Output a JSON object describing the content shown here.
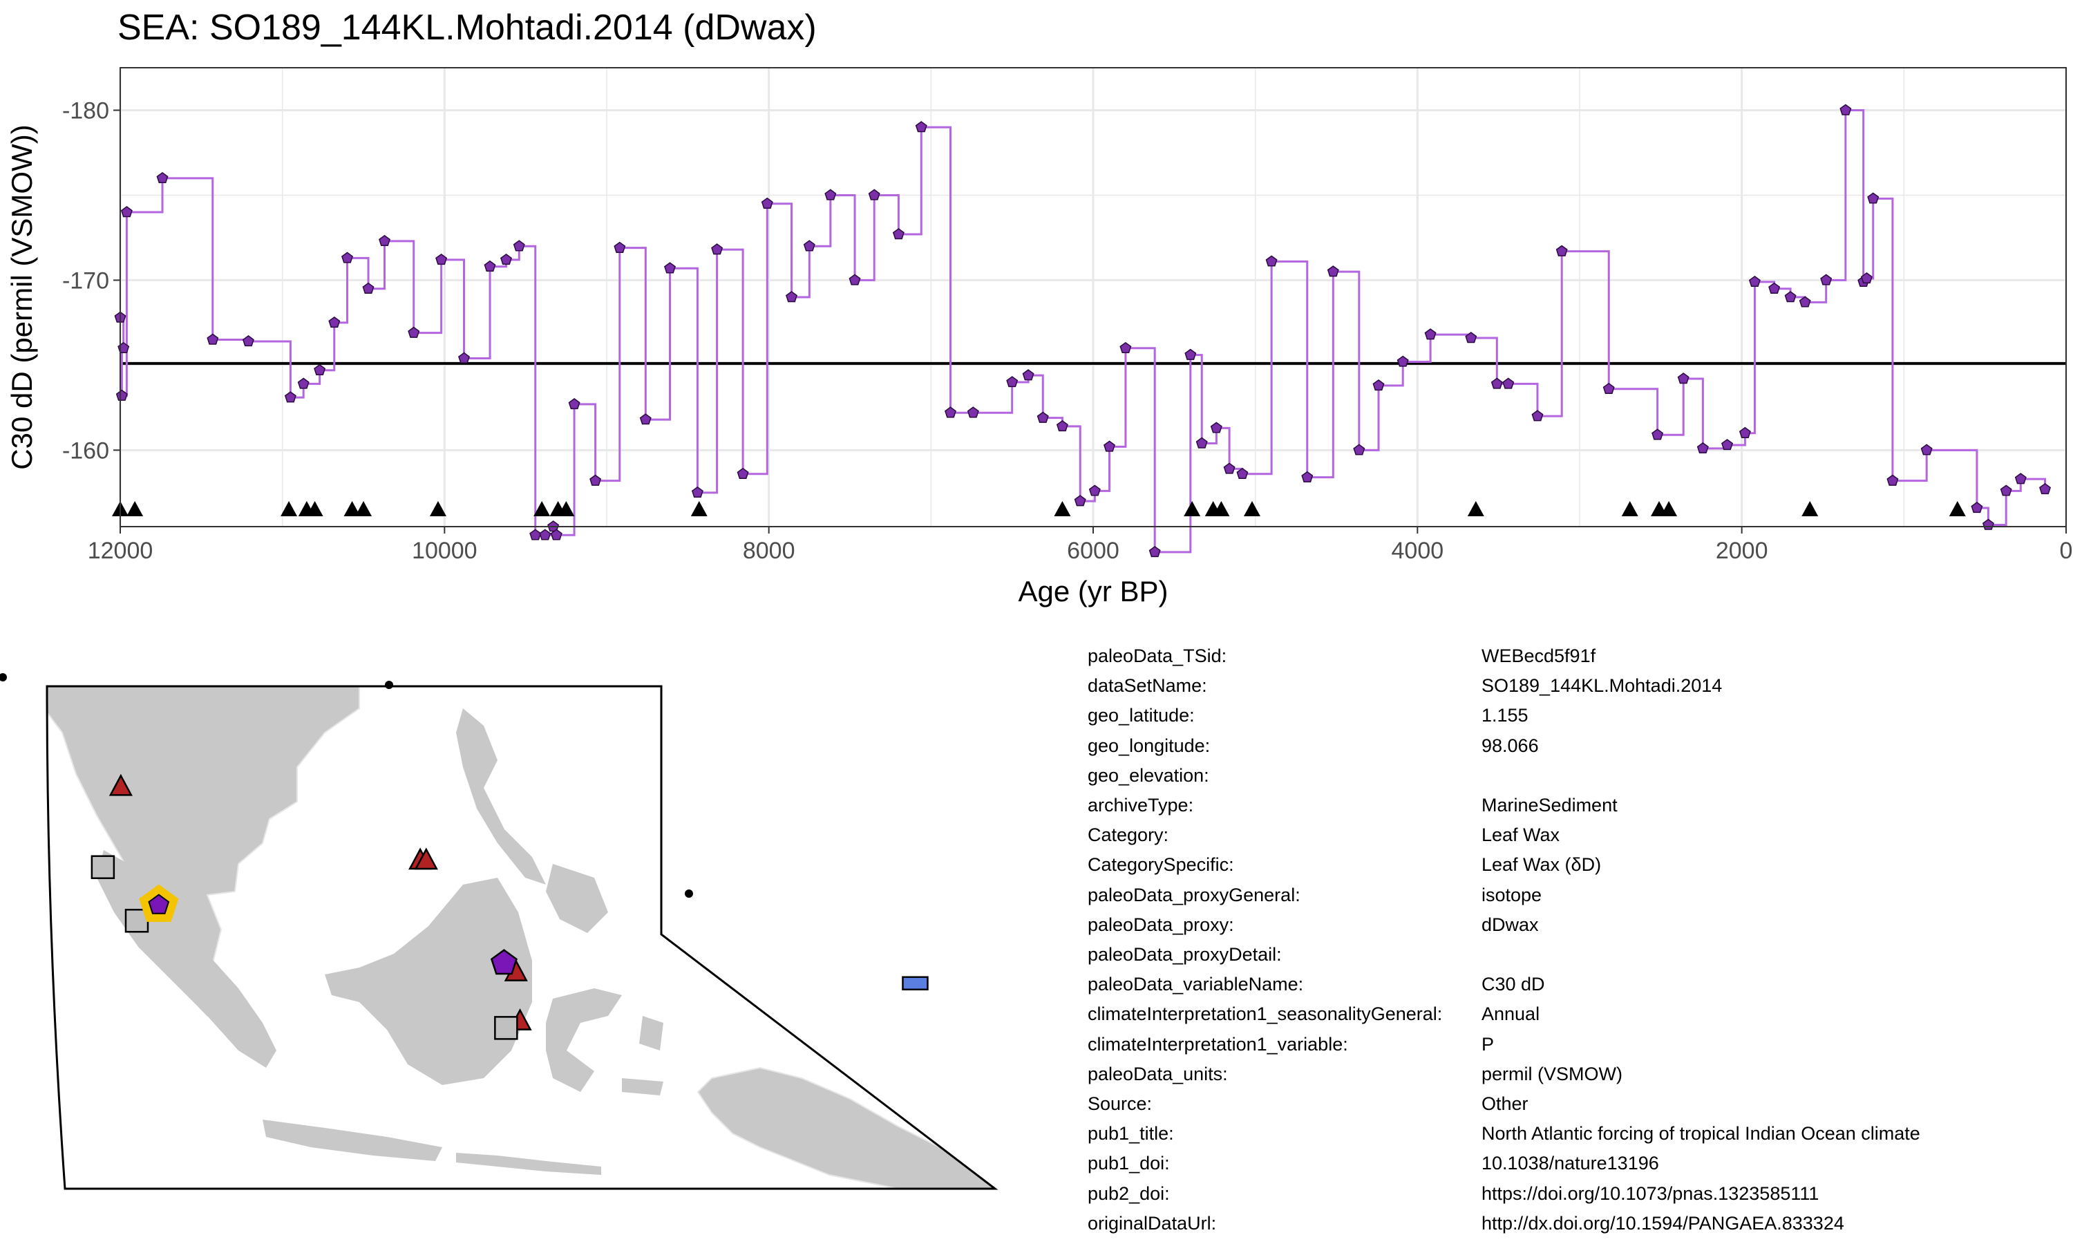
{
  "title": "SEA: SO189_144KL.Mohtadi.2014 (dDwax)",
  "colors": {
    "series_line": "#b366e0",
    "series_point": "#7b2fa8",
    "mean_line": "#000000",
    "land": "#c8c8c8",
    "highlight": "#f5c400",
    "triangle_red": "#b22222",
    "square_grey": "#c0c0c0",
    "rect_blue": "#5b7fe0",
    "pentagon_purple": "#7a16b8"
  },
  "chart_data": {
    "type": "line",
    "title": "SEA: SO189_144KL.Mohtadi.2014 (dDwax)",
    "xlabel": "Age (yr BP)",
    "ylabel": "C30 dD (permil (VSMOW))",
    "x_reversed": true,
    "y_reversed": true,
    "xlim": [
      12000,
      0
    ],
    "ylim": [
      -182.5,
      -155.5
    ],
    "xticks": [
      12000,
      10000,
      8000,
      6000,
      4000,
      2000,
      0
    ],
    "xtick_labels": [
      "12000",
      "10000",
      "8000",
      "6000",
      "4000",
      "2000",
      "0"
    ],
    "yticks": [
      -180,
      -170,
      -160
    ],
    "ytick_labels": [
      "-180",
      "-170",
      "-160"
    ],
    "grid": true,
    "step": true,
    "mean": -165.1,
    "series": [
      {
        "x": [
          12000,
          11980,
          11990,
          11960,
          11740,
          11430,
          11210,
          10950,
          10870,
          10770,
          10680,
          10600,
          10470,
          10370,
          10190,
          10020,
          9880,
          9720,
          9620,
          9540,
          9440,
          9380,
          9330,
          9310,
          9200,
          9070,
          8920,
          8760,
          8610,
          8440,
          8320,
          8160,
          8010,
          7860,
          7750,
          7620,
          7470,
          7350,
          7200,
          7060,
          6880,
          6740,
          6500,
          6400,
          6310,
          6190,
          6080,
          5990,
          5900,
          5800,
          5620,
          5400,
          5330,
          5240,
          5160,
          5080,
          4900,
          4680,
          4520,
          4360,
          4240,
          4090,
          3920,
          3670,
          3510,
          3440,
          3260,
          3110,
          2820,
          2520,
          2360,
          2240,
          2090,
          1980,
          1920,
          1800,
          1700,
          1610,
          1480,
          1360,
          1250,
          1230,
          1190,
          1070,
          860,
          550,
          480,
          370,
          280,
          130
        ],
        "y": [
          -167.8,
          -166.0,
          -163.2,
          -174.0,
          -176.0,
          -166.5,
          -166.4,
          -163.1,
          -163.9,
          -164.7,
          -167.5,
          -171.3,
          -169.5,
          -172.3,
          -166.9,
          -171.2,
          -165.4,
          -170.8,
          -171.2,
          -172.0,
          -155.0,
          -155.0,
          -155.5,
          -155.0,
          -162.7,
          -158.2,
          -171.9,
          -161.8,
          -170.7,
          -157.5,
          -171.8,
          -158.6,
          -174.5,
          -169.0,
          -172.0,
          -175.0,
          -170.0,
          -175.0,
          -172.7,
          -179.0,
          -162.2,
          -162.2,
          -164.0,
          -164.4,
          -161.9,
          -161.4,
          -157.0,
          -157.6,
          -160.2,
          -166.0,
          -154.0,
          -165.6,
          -160.4,
          -161.3,
          -158.9,
          -158.6,
          -171.1,
          -158.4,
          -170.5,
          -160.0,
          -163.8,
          -165.2,
          -166.8,
          -166.6,
          -163.9,
          -163.9,
          -162.0,
          -171.7,
          -163.6,
          -160.9,
          -164.2,
          -160.1,
          -160.3,
          -161.0,
          -169.9,
          -169.5,
          -169.0,
          -168.7,
          -170.0,
          -180.0,
          -169.9,
          -170.1,
          -174.8,
          -158.2,
          -160.0,
          -156.6,
          -155.6,
          -157.6,
          -158.3,
          -157.7
        ]
      }
    ],
    "age_control_points": [
      12000,
      11910,
      10960,
      10850,
      10800,
      10570,
      10500,
      10040,
      9400,
      9300,
      9250,
      8430,
      6190,
      5390,
      5260,
      5210,
      5020,
      3640,
      2690,
      2510,
      2450,
      1580,
      670
    ]
  },
  "map": {
    "sites": [
      {
        "shape": "triangle",
        "color": "#b22222",
        "lon": 96.2,
        "lat": 6.5
      },
      {
        "shape": "triangle",
        "color": "#b22222",
        "lon": 111.2,
        "lat": 3.2
      },
      {
        "shape": "triangle",
        "color": "#b22222",
        "lon": 111.5,
        "lat": 3.2
      },
      {
        "shape": "triangle",
        "color": "#b22222",
        "lon": 116.0,
        "lat": -1.8
      },
      {
        "shape": "triangle",
        "color": "#b22222",
        "lon": 116.2,
        "lat": -4.0
      },
      {
        "shape": "square",
        "color": "#c0c0c0",
        "lon": 95.3,
        "lat": 2.9
      },
      {
        "shape": "square",
        "color": "#c0c0c0",
        "lon": 97.0,
        "lat": 0.5
      },
      {
        "shape": "square",
        "color": "#c0c0c0",
        "lon": 115.5,
        "lat": -4.3
      },
      {
        "shape": "rect",
        "color": "#5b7fe0",
        "lon": 136.0,
        "lat": -2.3
      },
      {
        "shape": "pentagon",
        "color": "#7a16b8",
        "lon": 115.4,
        "lat": -1.4
      },
      {
        "shape": "pentagon-highlight",
        "color": "#7a16b8",
        "lon": 98.1,
        "lat": 1.2
      }
    ]
  },
  "metadata": [
    {
      "key": "paleoData_TSid:",
      "value": "WEBecd5f91f"
    },
    {
      "key": "dataSetName:",
      "value": "SO189_144KL.Mohtadi.2014"
    },
    {
      "key": "geo_latitude:",
      "value": "1.155"
    },
    {
      "key": "geo_longitude:",
      "value": "98.066"
    },
    {
      "key": "geo_elevation:",
      "value": ""
    },
    {
      "key": "archiveType:",
      "value": "MarineSediment"
    },
    {
      "key": "Category:",
      "value": "Leaf Wax"
    },
    {
      "key": "CategorySpecific:",
      "value": "Leaf Wax (δD)"
    },
    {
      "key": "paleoData_proxyGeneral:",
      "value": "isotope"
    },
    {
      "key": "paleoData_proxy:",
      "value": "dDwax"
    },
    {
      "key": "paleoData_proxyDetail:",
      "value": ""
    },
    {
      "key": "paleoData_variableName:",
      "value": "C30 dD"
    },
    {
      "key": "climateInterpretation1_seasonalityGeneral:",
      "value": "Annual"
    },
    {
      "key": "climateInterpretation1_variable:",
      "value": "P"
    },
    {
      "key": "paleoData_units:",
      "value": "permil (VSMOW)"
    },
    {
      "key": "Source:",
      "value": "Other"
    },
    {
      "key": "pub1_title:",
      "value": "North Atlantic forcing of tropical Indian Ocean climate"
    },
    {
      "key": "pub1_doi:",
      "value": "10.1038/nature13196"
    },
    {
      "key": "pub2_doi:",
      "value": "https://doi.org/10.1073/pnas.1323585111"
    },
    {
      "key": "originalDataUrl:",
      "value": "http://dx.doi.org/10.1594/PANGAEA.833324"
    }
  ]
}
